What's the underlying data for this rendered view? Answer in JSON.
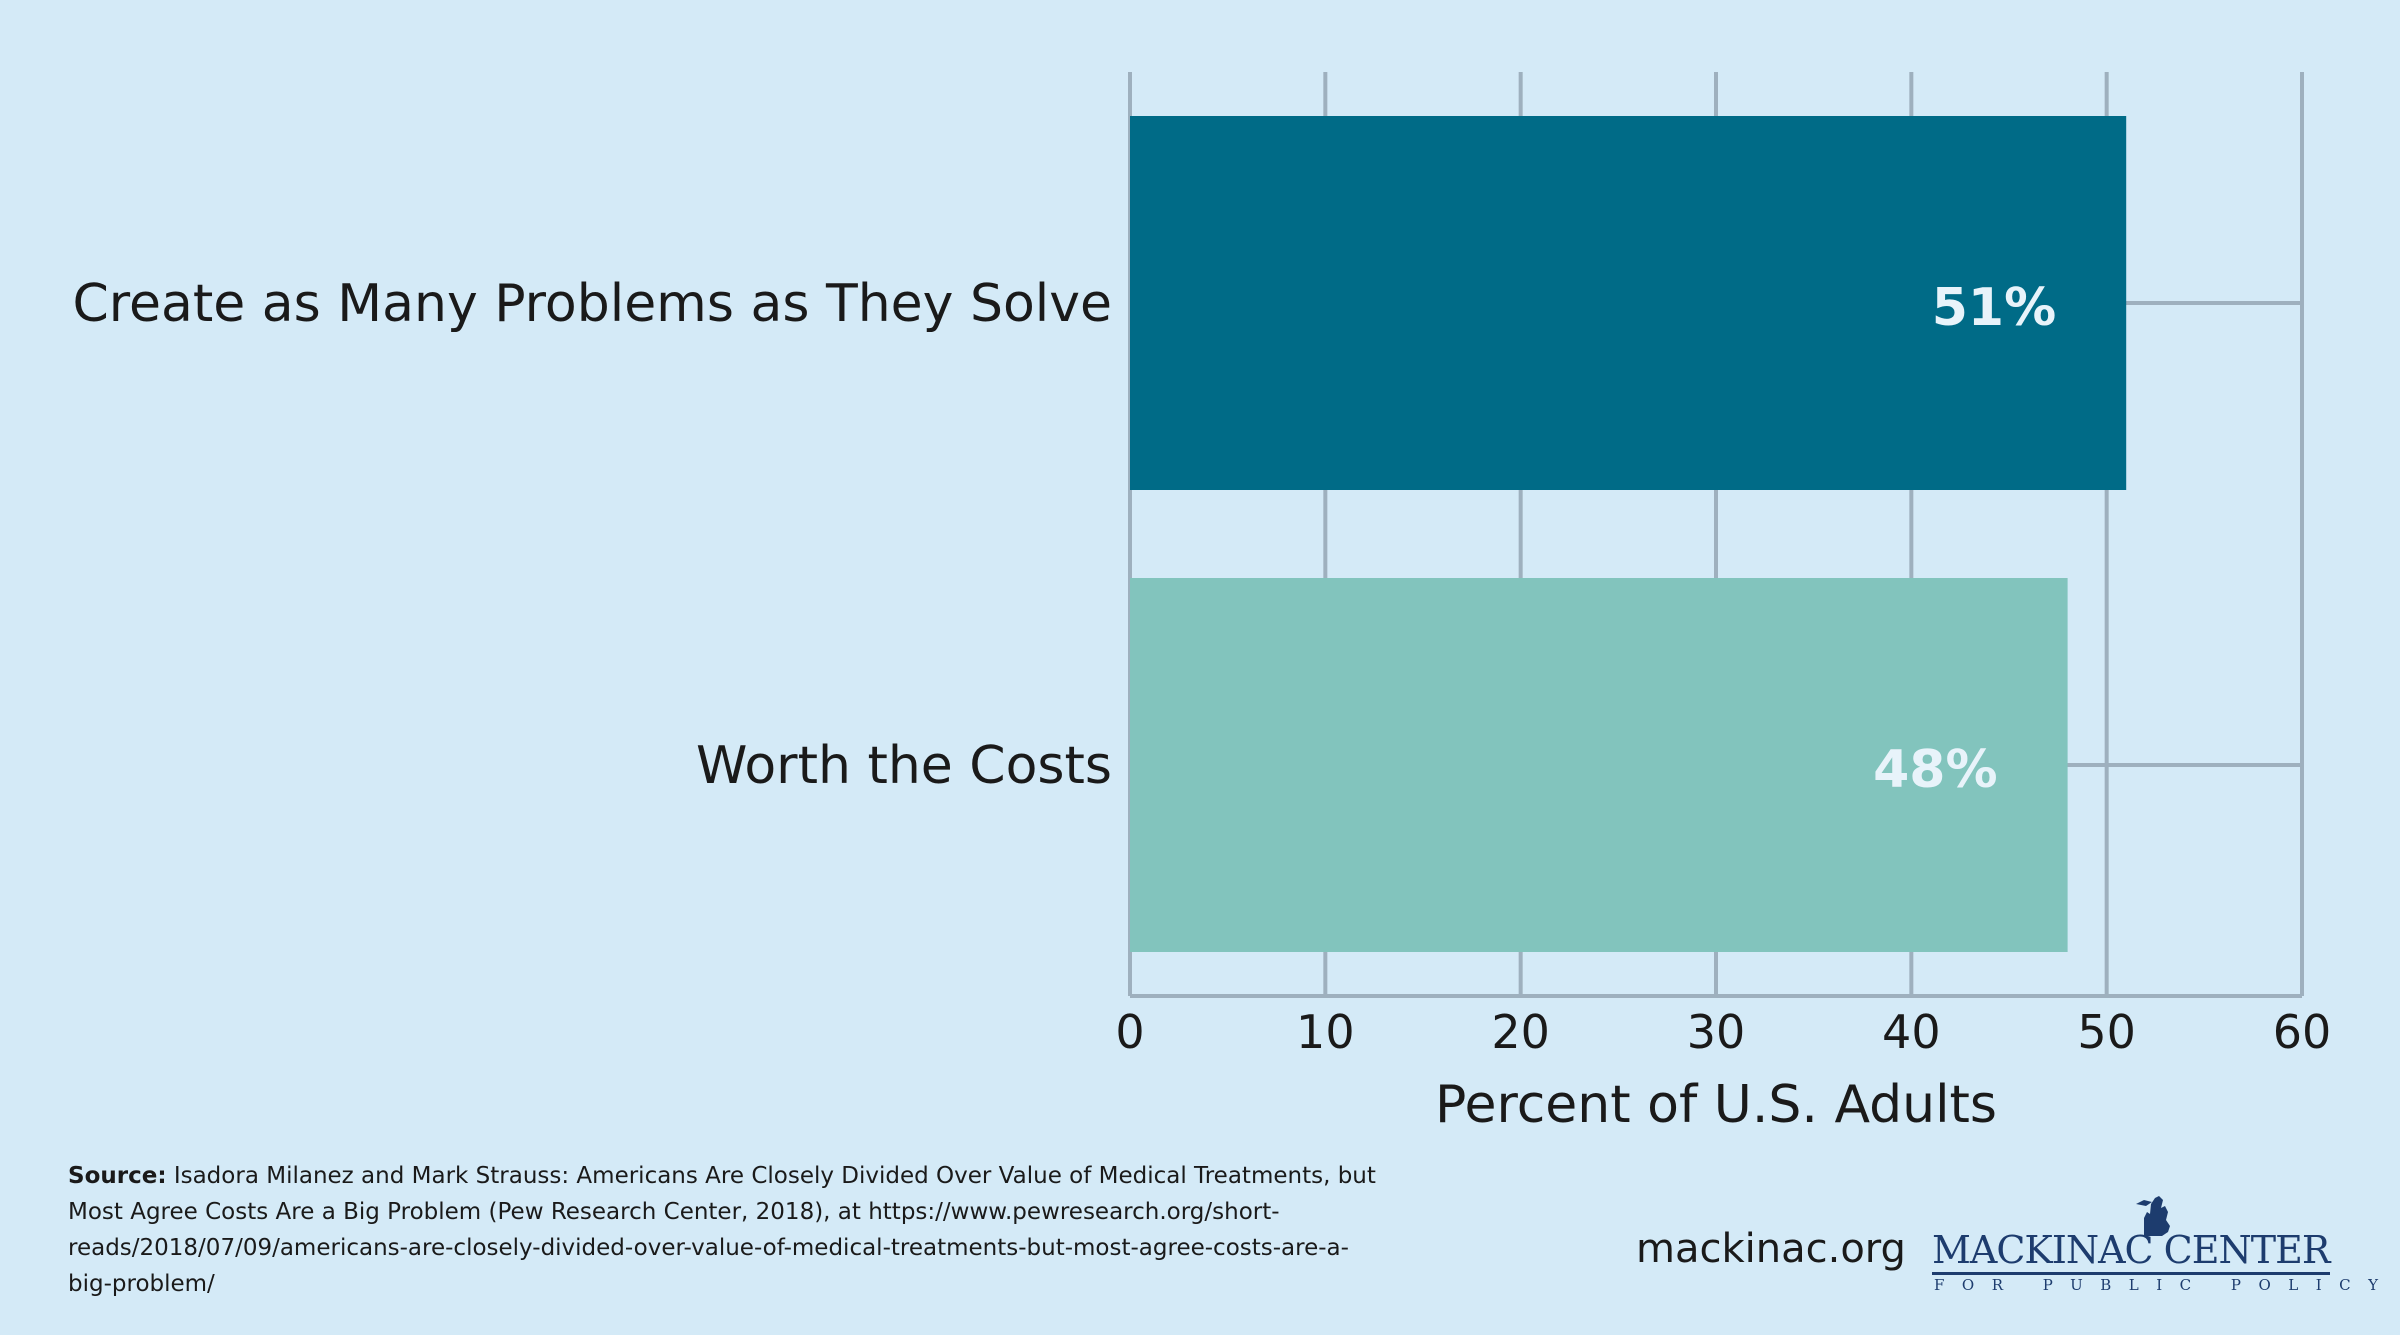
{
  "chart_data": {
    "type": "bar",
    "orientation": "horizontal",
    "categories": [
      "Create as Many Problems as They Solve",
      "Worth the Costs"
    ],
    "values": [
      51,
      48
    ],
    "data_labels": [
      "51%",
      "48%"
    ],
    "colors": [
      "#006b87",
      "#82c4bd"
    ],
    "label_colors": [
      "#e8f3fa",
      "#e8f3fa"
    ],
    "xlabel": "Percent of U.S. Adults",
    "ylabel": "",
    "xlim": [
      0,
      60
    ],
    "xticks": [
      0,
      10,
      20,
      30,
      40,
      50,
      60
    ],
    "xtick_labels": [
      "0",
      "10",
      "20",
      "30",
      "40",
      "50",
      "60"
    ],
    "grid": true,
    "grid_color": "#9eb0be"
  },
  "footer": {
    "source_label": "Source:",
    "source_text": " Isadora Milanez and Mark Strauss: Americans Are Closely Divided Over Value of Medical Treatments, but Most Agree Costs Are a Big Problem (Pew Research Center, 2018), at https://www.pewresearch.org/short-reads/2018/07/09/americans-are-closely-divided-over-value-of-medical-treatments-but-most-agree-costs-are-a-big-problem/",
    "site": "mackinac.org"
  },
  "logo": {
    "main": "MACKINAC CENTER",
    "sub": "FOR PUBLIC POLICY"
  },
  "colors": {
    "background": "#d4eaf7",
    "logo": "#1d3c6e"
  }
}
